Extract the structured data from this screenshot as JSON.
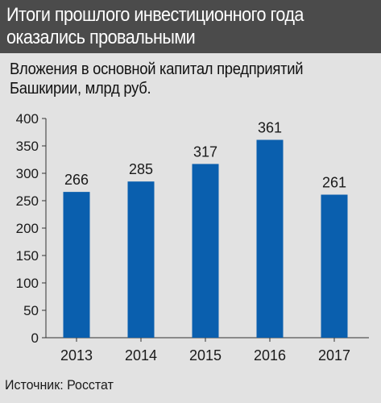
{
  "header": {
    "title": "Итоги прошлого инвестиционного года оказались провальными"
  },
  "subtitle": "Вложения в основной капитал предприятий Башкирии, млрд руб.",
  "source": "Источник: Росстат",
  "colors": {
    "bar": "#0a5fae",
    "header_bg": "#4b4b4b",
    "background": "#e2e2e2"
  },
  "chart_data": {
    "type": "bar",
    "title": "Вложения в основной капитал предприятий Башкирии, млрд руб.",
    "categories": [
      "2013",
      "2014",
      "2015",
      "2016",
      "2017"
    ],
    "values": [
      266,
      285,
      317,
      361,
      261
    ],
    "value_labels": [
      "266",
      "285",
      "317",
      "361",
      "261"
    ],
    "ylim": [
      0,
      400
    ],
    "yticks": [
      0,
      50,
      100,
      150,
      200,
      250,
      300,
      350,
      400
    ],
    "grid": false,
    "xlabel": "",
    "ylabel": ""
  }
}
